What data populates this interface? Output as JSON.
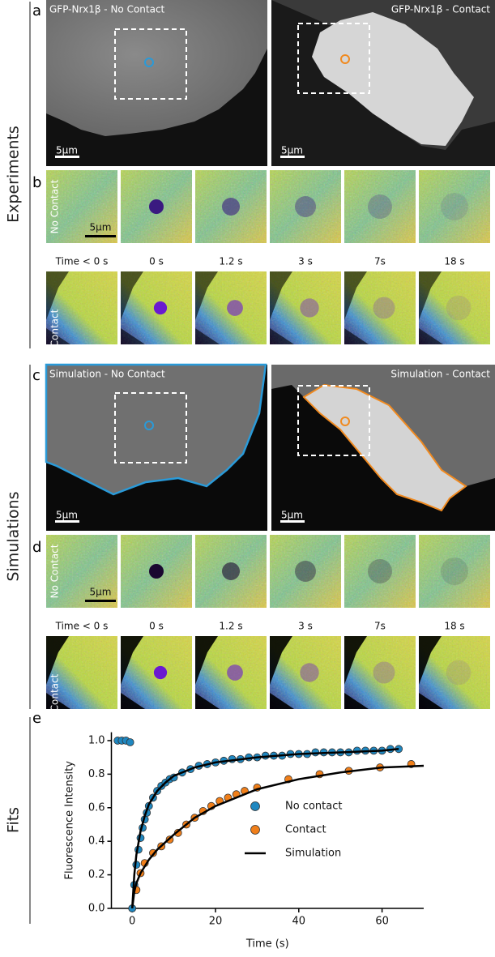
{
  "sections": [
    "Experiments",
    "Simulations",
    "Fits"
  ],
  "panel_labels": [
    "a",
    "b",
    "c",
    "d",
    "e"
  ],
  "panel_a": {
    "titles": [
      "GFP-Nrx1β - No Contact",
      "GFP-Nrx1β - Contact"
    ],
    "scale_bar": "5μm"
  },
  "panel_b": {
    "row_labels": [
      "No Contact",
      "Contact"
    ],
    "scale_bar": "5μm",
    "times": [
      "Time < 0 s",
      "0 s",
      "1.2 s",
      "3 s",
      "7s",
      "18 s"
    ]
  },
  "panel_c": {
    "titles": [
      "Simulation - No Contact",
      "Simulation - Contact"
    ],
    "scale_bar": "5μm"
  },
  "panel_d": {
    "row_labels": [
      "No Contact",
      "Contact"
    ],
    "scale_bar": "5μm",
    "times": [
      "Time < 0 s",
      "0 s",
      "1.2 s",
      "3 s",
      "7s",
      "18 s"
    ]
  },
  "chart_data": {
    "type": "scatter",
    "xlabel": "Time (s)",
    "ylabel": "Fluorescence Intensity",
    "xlim": [
      -5,
      70
    ],
    "ylim": [
      0,
      1.05
    ],
    "xticks": [
      0,
      20,
      40,
      60
    ],
    "yticks": [
      {
        "value": 0,
        "label": "0.0"
      },
      {
        "value": 0.2,
        "label": "0.2"
      },
      {
        "value": 0.4,
        "label": "0.4"
      },
      {
        "value": 0.6,
        "label": "0.6"
      },
      {
        "value": 0.8,
        "label": "0.8"
      },
      {
        "value": 1,
        "label": "1.0"
      }
    ],
    "series": [
      {
        "name": "No contact",
        "type": "scatter",
        "color": "#1f87c0",
        "x": [
          -3.5,
          -2.5,
          -1.5,
          -0.5,
          0,
          0.5,
          1,
          1.5,
          2,
          2.5,
          3,
          3.5,
          4,
          5,
          6,
          7,
          8,
          9,
          10,
          12,
          14,
          16,
          18,
          20,
          22,
          24,
          26,
          28,
          30,
          32,
          34,
          36,
          38,
          40,
          42,
          44,
          46,
          48,
          50,
          52,
          54,
          56,
          58,
          60,
          62,
          64
        ],
        "values": [
          1.0,
          1.0,
          1.0,
          0.99,
          0.0,
          0.14,
          0.26,
          0.35,
          0.42,
          0.48,
          0.53,
          0.57,
          0.61,
          0.66,
          0.7,
          0.73,
          0.75,
          0.77,
          0.78,
          0.81,
          0.83,
          0.85,
          0.86,
          0.87,
          0.88,
          0.89,
          0.89,
          0.9,
          0.9,
          0.91,
          0.91,
          0.91,
          0.92,
          0.92,
          0.92,
          0.93,
          0.93,
          0.93,
          0.93,
          0.93,
          0.94,
          0.94,
          0.94,
          0.94,
          0.95,
          0.95
        ]
      },
      {
        "name": "Contact",
        "type": "scatter",
        "color": "#f07f1a",
        "x": [
          1,
          2,
          3,
          5,
          7,
          9,
          11,
          13,
          15,
          17,
          19,
          21,
          23,
          25,
          27,
          30,
          37.5,
          45,
          52,
          59.5,
          67
        ],
        "values": [
          0.11,
          0.21,
          0.27,
          0.33,
          0.37,
          0.41,
          0.45,
          0.5,
          0.54,
          0.58,
          0.61,
          0.64,
          0.66,
          0.68,
          0.7,
          0.72,
          0.77,
          0.8,
          0.82,
          0.84,
          0.86
        ]
      },
      {
        "name": "Simulation",
        "type": "line",
        "color": "#000000",
        "x": [
          0,
          0.5,
          1,
          2,
          3,
          4,
          6,
          8,
          10,
          15,
          20,
          30,
          40,
          50,
          60,
          64,
          64,
          0,
          0.5,
          1,
          2,
          4,
          6,
          10,
          15,
          20,
          30,
          40,
          50,
          60,
          70
        ],
        "values": [
          0,
          0.2,
          0.32,
          0.46,
          0.55,
          0.62,
          0.7,
          0.75,
          0.79,
          0.84,
          0.87,
          0.9,
          0.92,
          0.93,
          0.94,
          0.95,
          null,
          0,
          0.1,
          0.15,
          0.21,
          0.29,
          0.35,
          0.44,
          0.54,
          0.61,
          0.71,
          0.77,
          0.81,
          0.84,
          0.85
        ]
      }
    ]
  }
}
